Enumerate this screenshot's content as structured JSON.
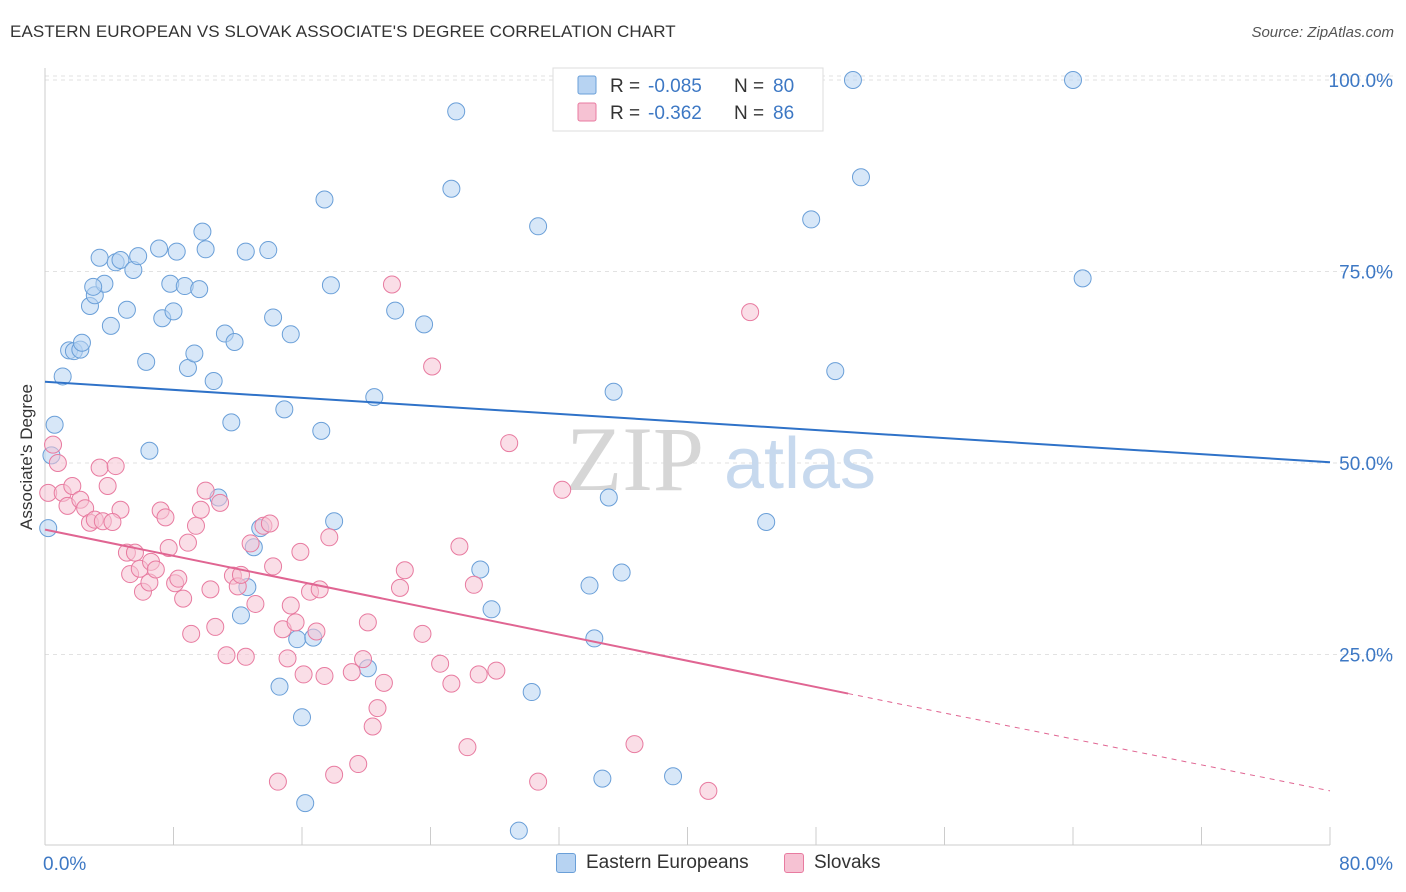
{
  "title": "EASTERN EUROPEAN VS SLOVAK ASSOCIATE'S DEGREE CORRELATION CHART",
  "source": "Source: ZipAtlas.com",
  "watermark": {
    "part1": "ZIP",
    "part2": "atlas"
  },
  "colors": {
    "eastern": "#6a9fd8",
    "eastern_fill": "#b7d3f2",
    "eastern_line": "#2f72c8",
    "slovak": "#e87ba0",
    "slovak_fill": "#f6c2d3",
    "slovak_line": "#e06592",
    "tick_label": "#3d78c4"
  },
  "legend_top": {
    "rows": [
      {
        "r_label": "R =",
        "r_value": "-0.085",
        "n_label": "N =",
        "n_value": "80"
      },
      {
        "r_label": "R =",
        "r_value": "-0.362",
        "n_label": "N =",
        "n_value": "86"
      }
    ]
  },
  "legend_bottom": {
    "items": [
      "Eastern Europeans",
      "Slovaks"
    ]
  },
  "chart_data": {
    "type": "scatter",
    "title": "EASTERN EUROPEAN VS SLOVAK ASSOCIATE'S DEGREE CORRELATION CHART",
    "xlabel": "",
    "ylabel": "Associate's Degree",
    "xlim": [
      0,
      80
    ],
    "ylim": [
      0,
      103
    ],
    "x_tick_labels": [
      "0.0%",
      "80.0%"
    ],
    "y_ticks": [
      25,
      50,
      75,
      100
    ],
    "y_tick_labels": [
      "25.0%",
      "50.0%",
      "75.0%",
      "100.0%"
    ],
    "grid": true,
    "legend_position": "top-center",
    "series": [
      {
        "name": "Eastern Europeans",
        "R": -0.085,
        "N": 80,
        "trend": {
          "x": [
            0,
            80
          ],
          "y": [
            60.6,
            50.1
          ]
        },
        "points": [
          [
            0.6,
            55.0
          ],
          [
            1.1,
            61.3
          ],
          [
            1.5,
            64.7
          ],
          [
            1.8,
            64.6
          ],
          [
            2.2,
            64.8
          ],
          [
            2.3,
            65.7
          ],
          [
            2.8,
            70.5
          ],
          [
            3.1,
            71.9
          ],
          [
            3.4,
            76.8
          ],
          [
            3.7,
            73.4
          ],
          [
            4.1,
            67.9
          ],
          [
            4.4,
            76.2
          ],
          [
            4.7,
            76.5
          ],
          [
            5.1,
            70.0
          ],
          [
            5.5,
            75.2
          ],
          [
            5.8,
            77.0
          ],
          [
            6.3,
            63.2
          ],
          [
            6.5,
            51.6
          ],
          [
            7.1,
            78.0
          ],
          [
            7.3,
            68.9
          ],
          [
            7.8,
            73.4
          ],
          [
            8.0,
            69.8
          ],
          [
            8.2,
            77.6
          ],
          [
            8.7,
            73.1
          ],
          [
            8.9,
            62.4
          ],
          [
            9.3,
            64.3
          ],
          [
            9.6,
            72.7
          ],
          [
            9.8,
            80.2
          ],
          [
            10.0,
            77.9
          ],
          [
            10.5,
            60.7
          ],
          [
            10.8,
            45.5
          ],
          [
            11.2,
            66.9
          ],
          [
            11.6,
            55.3
          ],
          [
            11.8,
            65.8
          ],
          [
            12.2,
            30.1
          ],
          [
            12.5,
            77.6
          ],
          [
            12.6,
            33.8
          ],
          [
            13.4,
            41.5
          ],
          [
            13.9,
            77.8
          ],
          [
            14.2,
            69.0
          ],
          [
            14.6,
            20.8
          ],
          [
            14.9,
            57.0
          ],
          [
            15.3,
            66.8
          ],
          [
            15.7,
            27.0
          ],
          [
            16.0,
            16.8
          ],
          [
            16.2,
            5.6
          ],
          [
            16.7,
            27.2
          ],
          [
            17.2,
            54.2
          ],
          [
            17.4,
            84.4
          ],
          [
            17.8,
            73.2
          ],
          [
            18.0,
            42.4
          ],
          [
            20.1,
            23.2
          ],
          [
            20.5,
            58.6
          ],
          [
            21.8,
            69.9
          ],
          [
            23.6,
            68.1
          ],
          [
            25.3,
            85.8
          ],
          [
            25.6,
            95.9
          ],
          [
            27.1,
            36.1
          ],
          [
            27.8,
            30.9
          ],
          [
            29.5,
            2.0
          ],
          [
            30.3,
            20.1
          ],
          [
            30.7,
            80.9
          ],
          [
            33.9,
            34.0
          ],
          [
            34.2,
            27.1
          ],
          [
            34.7,
            8.8
          ],
          [
            35.1,
            45.5
          ],
          [
            35.4,
            59.3
          ],
          [
            35.9,
            35.7
          ],
          [
            39.1,
            9.1
          ],
          [
            44.9,
            42.3
          ],
          [
            47.7,
            81.8
          ],
          [
            49.2,
            62.0
          ],
          [
            50.3,
            100.0
          ],
          [
            50.8,
            87.3
          ],
          [
            64.0,
            100.0
          ],
          [
            64.6,
            74.1
          ],
          [
            13.0,
            39.0
          ],
          [
            0.2,
            41.5
          ],
          [
            0.4,
            51.0
          ],
          [
            3.0,
            73.0
          ]
        ]
      },
      {
        "name": "Slovaks",
        "R": -0.362,
        "N": 86,
        "trend": {
          "x": [
            0,
            50
          ],
          "y": [
            41.3,
            19.9
          ]
        },
        "trend_dashed": {
          "x": [
            50,
            80
          ],
          "y": [
            19.9,
            7.2
          ]
        },
        "points": [
          [
            0.2,
            46.1
          ],
          [
            0.5,
            52.4
          ],
          [
            0.8,
            50.0
          ],
          [
            1.1,
            46.1
          ],
          [
            1.4,
            44.4
          ],
          [
            1.7,
            47.0
          ],
          [
            2.2,
            45.2
          ],
          [
            2.5,
            44.1
          ],
          [
            2.8,
            42.2
          ],
          [
            3.1,
            42.6
          ],
          [
            3.4,
            49.4
          ],
          [
            3.6,
            42.4
          ],
          [
            3.9,
            47.0
          ],
          [
            4.4,
            49.6
          ],
          [
            4.7,
            43.9
          ],
          [
            5.1,
            38.3
          ],
          [
            5.3,
            35.5
          ],
          [
            5.6,
            38.3
          ],
          [
            5.9,
            36.2
          ],
          [
            6.1,
            33.2
          ],
          [
            6.5,
            34.4
          ],
          [
            6.6,
            37.1
          ],
          [
            6.9,
            36.1
          ],
          [
            7.2,
            43.8
          ],
          [
            7.5,
            42.9
          ],
          [
            7.7,
            38.9
          ],
          [
            8.1,
            34.3
          ],
          [
            8.3,
            34.9
          ],
          [
            8.6,
            32.3
          ],
          [
            8.9,
            39.6
          ],
          [
            9.4,
            41.8
          ],
          [
            9.7,
            43.9
          ],
          [
            10.0,
            46.4
          ],
          [
            10.3,
            33.5
          ],
          [
            10.6,
            28.6
          ],
          [
            10.9,
            44.8
          ],
          [
            11.3,
            24.9
          ],
          [
            11.7,
            35.3
          ],
          [
            12.0,
            33.9
          ],
          [
            12.2,
            35.4
          ],
          [
            12.5,
            24.7
          ],
          [
            12.8,
            39.5
          ],
          [
            13.1,
            31.6
          ],
          [
            13.6,
            41.8
          ],
          [
            14.0,
            42.1
          ],
          [
            14.2,
            36.5
          ],
          [
            14.5,
            8.4
          ],
          [
            14.8,
            28.3
          ],
          [
            15.1,
            24.5
          ],
          [
            15.3,
            31.4
          ],
          [
            15.6,
            29.2
          ],
          [
            15.9,
            38.4
          ],
          [
            16.1,
            22.4
          ],
          [
            16.5,
            33.2
          ],
          [
            16.9,
            28.0
          ],
          [
            17.1,
            33.5
          ],
          [
            17.7,
            40.3
          ],
          [
            18.0,
            9.3
          ],
          [
            19.1,
            22.7
          ],
          [
            19.5,
            10.7
          ],
          [
            19.8,
            24.4
          ],
          [
            20.1,
            29.2
          ],
          [
            20.4,
            15.6
          ],
          [
            20.7,
            18.0
          ],
          [
            21.1,
            21.3
          ],
          [
            21.6,
            73.3
          ],
          [
            22.1,
            33.7
          ],
          [
            22.4,
            36.0
          ],
          [
            23.5,
            27.7
          ],
          [
            24.1,
            62.6
          ],
          [
            24.6,
            23.8
          ],
          [
            25.3,
            21.2
          ],
          [
            25.8,
            39.1
          ],
          [
            26.3,
            12.9
          ],
          [
            26.7,
            34.1
          ],
          [
            27.0,
            22.4
          ],
          [
            28.1,
            22.9
          ],
          [
            28.9,
            52.6
          ],
          [
            30.7,
            8.4
          ],
          [
            32.2,
            46.5
          ],
          [
            36.7,
            13.3
          ],
          [
            41.3,
            7.2
          ],
          [
            43.9,
            69.7
          ],
          [
            17.4,
            22.2
          ],
          [
            9.1,
            27.7
          ],
          [
            4.2,
            42.3
          ]
        ]
      }
    ]
  }
}
